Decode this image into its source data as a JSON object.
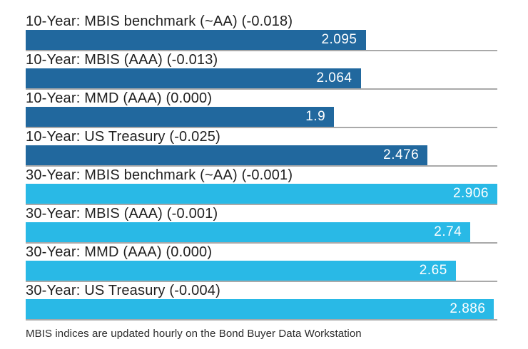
{
  "chart_data": {
    "type": "bar",
    "orientation": "horizontal",
    "title": "",
    "xlabel": "",
    "ylabel": "",
    "xlim": [
      0,
      2.906
    ],
    "grid": false,
    "legend": false,
    "bars": [
      {
        "label": "10-Year: MBIS benchmark (~AA) (-0.018)",
        "value": 2.095,
        "display": "2.095",
        "series": "10-year"
      },
      {
        "label": "10-Year: MBIS (AAA) (-0.013)",
        "value": 2.064,
        "display": "2.064",
        "series": "10-year"
      },
      {
        "label": "10-Year: MMD (AAA) (0.000)",
        "value": 1.9,
        "display": "1.9",
        "series": "10-year"
      },
      {
        "label": "10-Year: US Treasury (-0.025)",
        "value": 2.476,
        "display": "2.476",
        "series": "10-year"
      },
      {
        "label": "30-Year: MBIS benchmark (~AA) (-0.001)",
        "value": 2.906,
        "display": "2.906",
        "series": "30-year"
      },
      {
        "label": "30-Year: MBIS (AAA) (-0.001)",
        "value": 2.74,
        "display": "2.74",
        "series": "30-year"
      },
      {
        "label": "30-Year: MMD (AAA) (0.000)",
        "value": 2.65,
        "display": "2.65",
        "series": "30-year"
      },
      {
        "label": "30-Year: US Treasury (-0.004)",
        "value": 2.886,
        "display": "2.886",
        "series": "30-year"
      }
    ],
    "colors": {
      "series_10_year": "#21689e",
      "series_30_year": "#29b9e6",
      "baseline": "#a9a9a9",
      "value_text": "#ffffff",
      "label_text": "#1f1f1f"
    },
    "footnote": "MBIS indices are updated hourly on the Bond Buyer Data Workstation"
  }
}
